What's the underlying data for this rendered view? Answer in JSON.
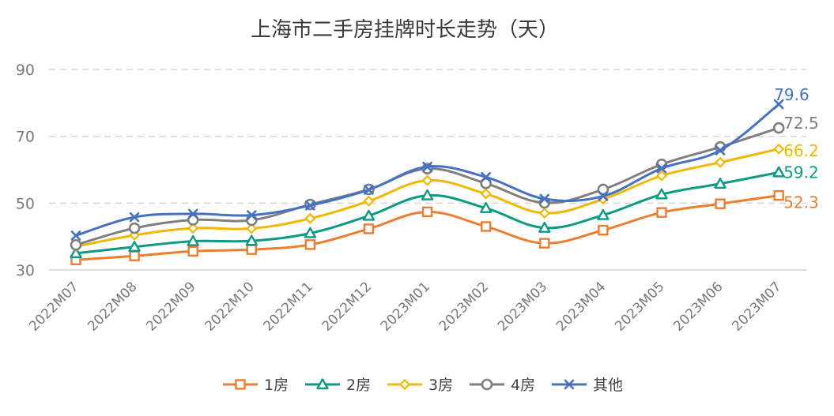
{
  "chart_data": {
    "type": "line",
    "title": "上海市二手房挂牌时长走势（天）",
    "xlabel": "",
    "ylabel": "",
    "ylim": [
      30,
      90
    ],
    "yticks": [
      30,
      50,
      70,
      90
    ],
    "grid": true,
    "legend_position": "bottom",
    "categories": [
      "2022M07",
      "2022M08",
      "2022M09",
      "2022M10",
      "2022M11",
      "2022M12",
      "2023M01",
      "2023M02",
      "2023M03",
      "2023M04",
      "2023M05",
      "2023M06",
      "2023M07"
    ],
    "series": [
      {
        "name": "1房",
        "color": "#ED7D31",
        "marker": "square",
        "values": [
          33.0,
          34.2,
          35.6,
          36.1,
          37.6,
          42.3,
          47.4,
          43.0,
          38.0,
          41.9,
          47.2,
          49.8,
          52.3
        ],
        "end_label": "52.3"
      },
      {
        "name": "2房",
        "color": "#0B9B82",
        "marker": "triangle",
        "values": [
          35.0,
          36.9,
          38.6,
          38.7,
          41.0,
          46.2,
          52.3,
          48.5,
          42.6,
          46.4,
          52.6,
          55.8,
          59.2
        ],
        "end_label": "59.2"
      },
      {
        "name": "3房",
        "color": "#F2B800",
        "marker": "diamond",
        "values": [
          37.0,
          40.4,
          42.5,
          42.4,
          45.4,
          50.6,
          56.8,
          52.8,
          47.0,
          51.2,
          58.2,
          62.2,
          66.2
        ],
        "end_label": "66.2"
      },
      {
        "name": "4房",
        "color": "#7F7F7F",
        "marker": "circle",
        "values": [
          37.5,
          42.5,
          45.0,
          44.9,
          49.6,
          54.1,
          60.3,
          55.9,
          50.1,
          54.1,
          61.6,
          66.8,
          72.5
        ],
        "end_label": "72.5"
      },
      {
        "name": "其他",
        "color": "#4472C4",
        "marker": "x",
        "values": [
          40.3,
          45.8,
          46.8,
          46.4,
          49.3,
          54.0,
          60.9,
          57.8,
          51.3,
          52.1,
          60.4,
          65.8,
          79.6
        ],
        "end_label": "79.6"
      }
    ]
  }
}
